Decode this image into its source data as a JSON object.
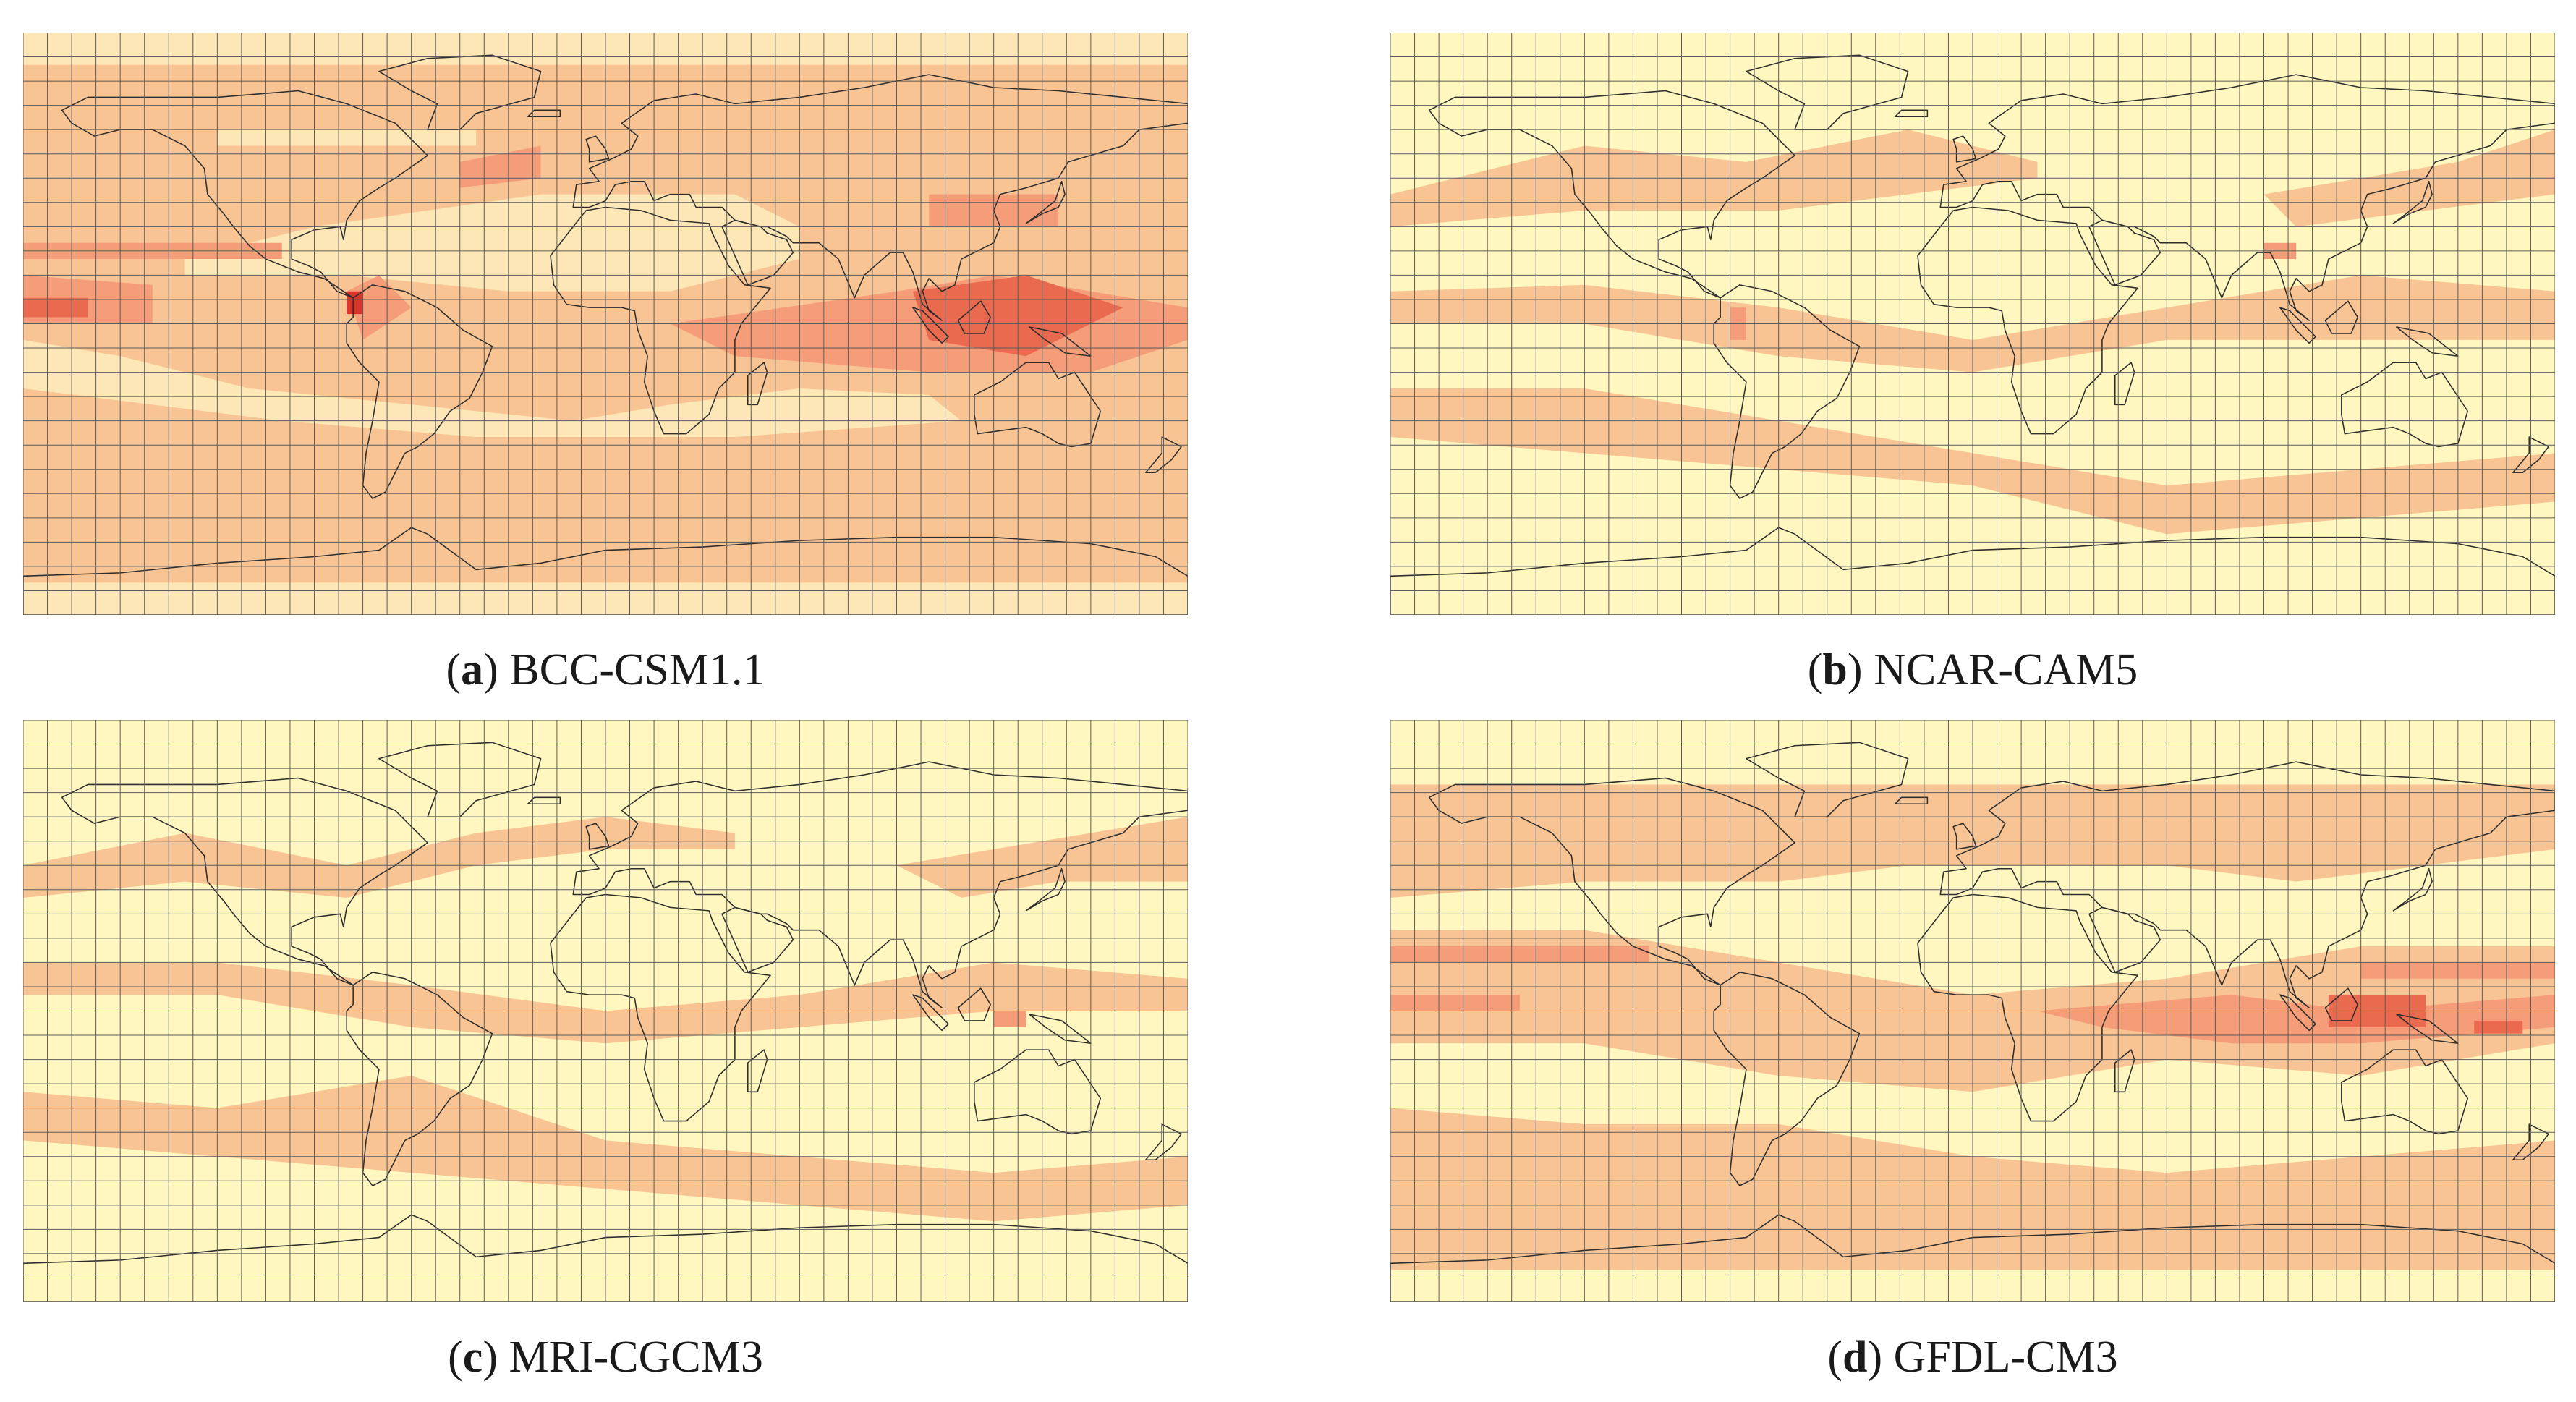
{
  "colors": {
    "lowest": "#fff7bf",
    "low": "#fde7b6",
    "mid": "#f9c493",
    "high": "#f59d79",
    "highest": "#ea6a4f",
    "peak": "#d9352c",
    "grid": "#5b5b5b",
    "coast": "#2e2e2e"
  },
  "panels": [
    {
      "id": "a",
      "letter": "a",
      "model": "BCC-CSM1.1",
      "base": "mid",
      "scheme": "bcc"
    },
    {
      "id": "b",
      "letter": "b",
      "model": "NCAR-CAM5",
      "base": "lowest",
      "scheme": "ncar"
    },
    {
      "id": "c",
      "letter": "c",
      "model": "MRI-CGCM3",
      "base": "lowest",
      "scheme": "mri"
    },
    {
      "id": "d",
      "letter": "d",
      "model": "GFDL-CM3",
      "base": "lowest",
      "scheme": "gfdl"
    }
  ]
}
